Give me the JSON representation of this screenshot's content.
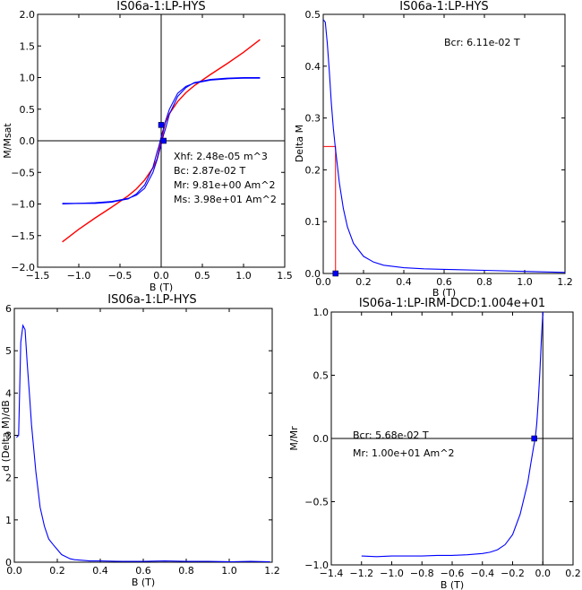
{
  "chart_data": [
    {
      "type": "line",
      "title": "IS06a-1:LP-HYS",
      "xlabel": "B (T)",
      "ylabel": "M/Msat",
      "xlim": [
        -1.5,
        1.5
      ],
      "ylim": [
        -2.0,
        2.0
      ],
      "xticks": [
        -1.5,
        -1.0,
        -0.5,
        0.0,
        0.5,
        1.0,
        1.5
      ],
      "xtick_labels": [
        "−1.5",
        "−1.0",
        "−0.5",
        "0.0",
        "0.5",
        "1.0",
        "1.5"
      ],
      "yticks": [
        -2.0,
        -1.5,
        -1.0,
        -0.5,
        0.0,
        0.5,
        1.0,
        1.5,
        2.0
      ],
      "ytick_labels": [
        "−2.0",
        "−1.5",
        "−1.0",
        "−0.5",
        "0.0",
        "0.5",
        "1.0",
        "1.5",
        "2.0"
      ],
      "axes_lines": "x=0 and y=0 drawn in black",
      "grid": false,
      "series": [
        {
          "color": "#ff0000",
          "x": [
            -1.2,
            -1.0,
            -0.8,
            -0.6,
            -0.4,
            -0.3,
            -0.2,
            -0.1,
            -0.05,
            0.0,
            0.05,
            0.1,
            0.2,
            0.3,
            0.4,
            0.6,
            0.8,
            1.0,
            1.2
          ],
          "y": [
            -1.6,
            -1.4,
            -1.22,
            -1.05,
            -0.87,
            -0.76,
            -0.62,
            -0.43,
            -0.29,
            0.0,
            0.29,
            0.43,
            0.62,
            0.76,
            0.87,
            1.05,
            1.22,
            1.4,
            1.6
          ]
        },
        {
          "color": "#0000ff",
          "x": [
            -1.2,
            -1.0,
            -0.8,
            -0.6,
            -0.4,
            -0.3,
            -0.2,
            -0.1,
            -0.05,
            0.0,
            0.03,
            0.05,
            0.1,
            0.2,
            0.3,
            0.4,
            0.6,
            0.8,
            1.0,
            1.2
          ],
          "y": [
            -0.99,
            -0.99,
            -0.98,
            -0.96,
            -0.91,
            -0.86,
            -0.75,
            -0.5,
            -0.3,
            -0.06,
            0.1,
            0.18,
            0.42,
            0.7,
            0.84,
            0.92,
            0.97,
            0.99,
            1.0,
            1.0
          ]
        },
        {
          "color": "#0000ff",
          "x": [
            -1.2,
            -1.0,
            -0.8,
            -0.6,
            -0.4,
            -0.3,
            -0.2,
            -0.1,
            -0.05,
            -0.03,
            0.0,
            0.05,
            0.1,
            0.2,
            0.3,
            0.4,
            0.6,
            0.8,
            1.0,
            1.2
          ],
          "y": [
            -1.0,
            -0.99,
            -0.99,
            -0.97,
            -0.92,
            -0.84,
            -0.7,
            -0.42,
            -0.18,
            -0.1,
            0.06,
            0.3,
            0.5,
            0.75,
            0.86,
            0.91,
            0.96,
            0.98,
            0.99,
            0.99
          ]
        }
      ],
      "markers": [
        {
          "x": 0.0,
          "y": 0.25,
          "color": "#0000ff"
        },
        {
          "x": 0.029,
          "y": 0.0,
          "color": "#0000ff"
        }
      ],
      "annotations": [
        "Xhf: 2.48e-05 m^3",
        "Bc: 2.87e-02 T",
        "Mr: 9.81e+00 Am^2",
        "Ms: 3.98e+01 Am^2"
      ]
    },
    {
      "type": "line",
      "title": "IS06a-1:LP-HYS",
      "xlabel": "B (T)",
      "ylabel": "Delta M",
      "xlim": [
        0.0,
        1.2
      ],
      "ylim": [
        0.0,
        0.5
      ],
      "xticks": [
        0.0,
        0.2,
        0.4,
        0.6,
        0.8,
        1.0,
        1.2
      ],
      "xtick_labels": [
        "0.0",
        "0.2",
        "0.4",
        "0.6",
        "0.8",
        "1.0",
        "1.2"
      ],
      "yticks": [
        0.0,
        0.1,
        0.2,
        0.3,
        0.4,
        0.5
      ],
      "ytick_labels": [
        "0.0",
        "0.1",
        "0.2",
        "0.3",
        "0.4",
        "0.5"
      ],
      "grid": false,
      "series": [
        {
          "color": "#0000ff",
          "x": [
            0.0,
            0.01,
            0.02,
            0.03,
            0.04,
            0.05,
            0.06,
            0.08,
            0.1,
            0.12,
            0.15,
            0.2,
            0.25,
            0.3,
            0.4,
            0.5,
            0.6,
            0.8,
            1.0,
            1.2
          ],
          "y": [
            0.49,
            0.485,
            0.445,
            0.39,
            0.33,
            0.28,
            0.243,
            0.175,
            0.125,
            0.09,
            0.058,
            0.033,
            0.022,
            0.016,
            0.011,
            0.009,
            0.008,
            0.006,
            0.004,
            0.002
          ]
        }
      ],
      "bcr_line": {
        "x": 0.0611,
        "y": 0.245,
        "color": "#ff0000"
      },
      "markers": [
        {
          "x": 0.0611,
          "y": 0.0,
          "color": "#0000ff"
        }
      ],
      "annotations": [
        "Bcr: 6.11e-02 T"
      ]
    },
    {
      "type": "line",
      "title": "IS06a-1:LP-HYS",
      "xlabel": "B (T)",
      "ylabel": "d (Delta M)/dB",
      "xlim": [
        0.0,
        1.2
      ],
      "ylim": [
        0,
        6
      ],
      "xticks": [
        0.0,
        0.2,
        0.4,
        0.6,
        0.8,
        1.0,
        1.2
      ],
      "xtick_labels": [
        "0.0",
        "0.2",
        "0.4",
        "0.6",
        "0.8",
        "1.0",
        "1.2"
      ],
      "yticks": [
        0,
        1,
        2,
        3,
        4,
        5,
        6
      ],
      "ytick_labels": [
        "0",
        "1",
        "2",
        "3",
        "4",
        "5",
        "6"
      ],
      "grid": false,
      "series": [
        {
          "color": "#0000ff",
          "x": [
            0.01,
            0.02,
            0.03,
            0.04,
            0.05,
            0.06,
            0.07,
            0.08,
            0.1,
            0.12,
            0.14,
            0.16,
            0.18,
            0.2,
            0.22,
            0.24,
            0.26,
            0.28,
            0.3,
            0.35,
            0.4,
            0.5,
            0.6,
            0.7,
            0.8,
            0.9,
            1.0,
            1.1,
            1.19
          ],
          "y": [
            2.95,
            3.0,
            5.2,
            5.6,
            5.5,
            4.7,
            4.0,
            3.25,
            2.15,
            1.3,
            0.85,
            0.55,
            0.42,
            0.3,
            0.18,
            0.13,
            0.08,
            0.06,
            0.05,
            0.03,
            0.03,
            0.02,
            0.02,
            0.03,
            0.02,
            0.02,
            0.01,
            0.02,
            0.01
          ]
        }
      ]
    },
    {
      "type": "line",
      "title": "IS06a-1:LP-IRM-DCD:1.004e+01",
      "xlabel": "B (T)",
      "ylabel": "M/Mr",
      "xlim": [
        -1.4,
        0.2
      ],
      "ylim": [
        -1.0,
        1.0
      ],
      "xticks": [
        -1.4,
        -1.2,
        -1.0,
        -0.8,
        -0.6,
        -0.4,
        -0.2,
        0.0,
        0.2
      ],
      "xtick_labels": [
        "−1.4",
        "−1.2",
        "−1.0",
        "−0.8",
        "−0.6",
        "−0.4",
        "−0.2",
        "0.0",
        "0.2"
      ],
      "yticks": [
        -1.0,
        -0.5,
        0.0,
        0.5,
        1.0
      ],
      "ytick_labels": [
        "−1.0",
        "−0.5",
        "0.0",
        "0.5",
        "1.0"
      ],
      "axes_lines": "x=0 and y=0 drawn in black",
      "grid": false,
      "series": [
        {
          "color": "#0000ff",
          "x": [
            -1.2,
            -1.1,
            -1.0,
            -0.9,
            -0.8,
            -0.7,
            -0.6,
            -0.5,
            -0.4,
            -0.35,
            -0.3,
            -0.25,
            -0.2,
            -0.15,
            -0.1,
            -0.08,
            -0.06,
            -0.05,
            -0.04,
            -0.03,
            -0.02,
            -0.01,
            0.0
          ],
          "y": [
            -0.93,
            -0.935,
            -0.93,
            -0.93,
            -0.93,
            -0.925,
            -0.925,
            -0.92,
            -0.91,
            -0.9,
            -0.88,
            -0.84,
            -0.76,
            -0.6,
            -0.35,
            -0.2,
            -0.06,
            0.0,
            0.12,
            0.3,
            0.52,
            0.78,
            1.0
          ]
        }
      ],
      "markers": [
        {
          "x": -0.0568,
          "y": 0.0,
          "color": "#0000ff"
        }
      ],
      "annotations": [
        "Bcr: 5.68e-02 T",
        "Mr: 1.00e+01 Am^2"
      ]
    }
  ]
}
